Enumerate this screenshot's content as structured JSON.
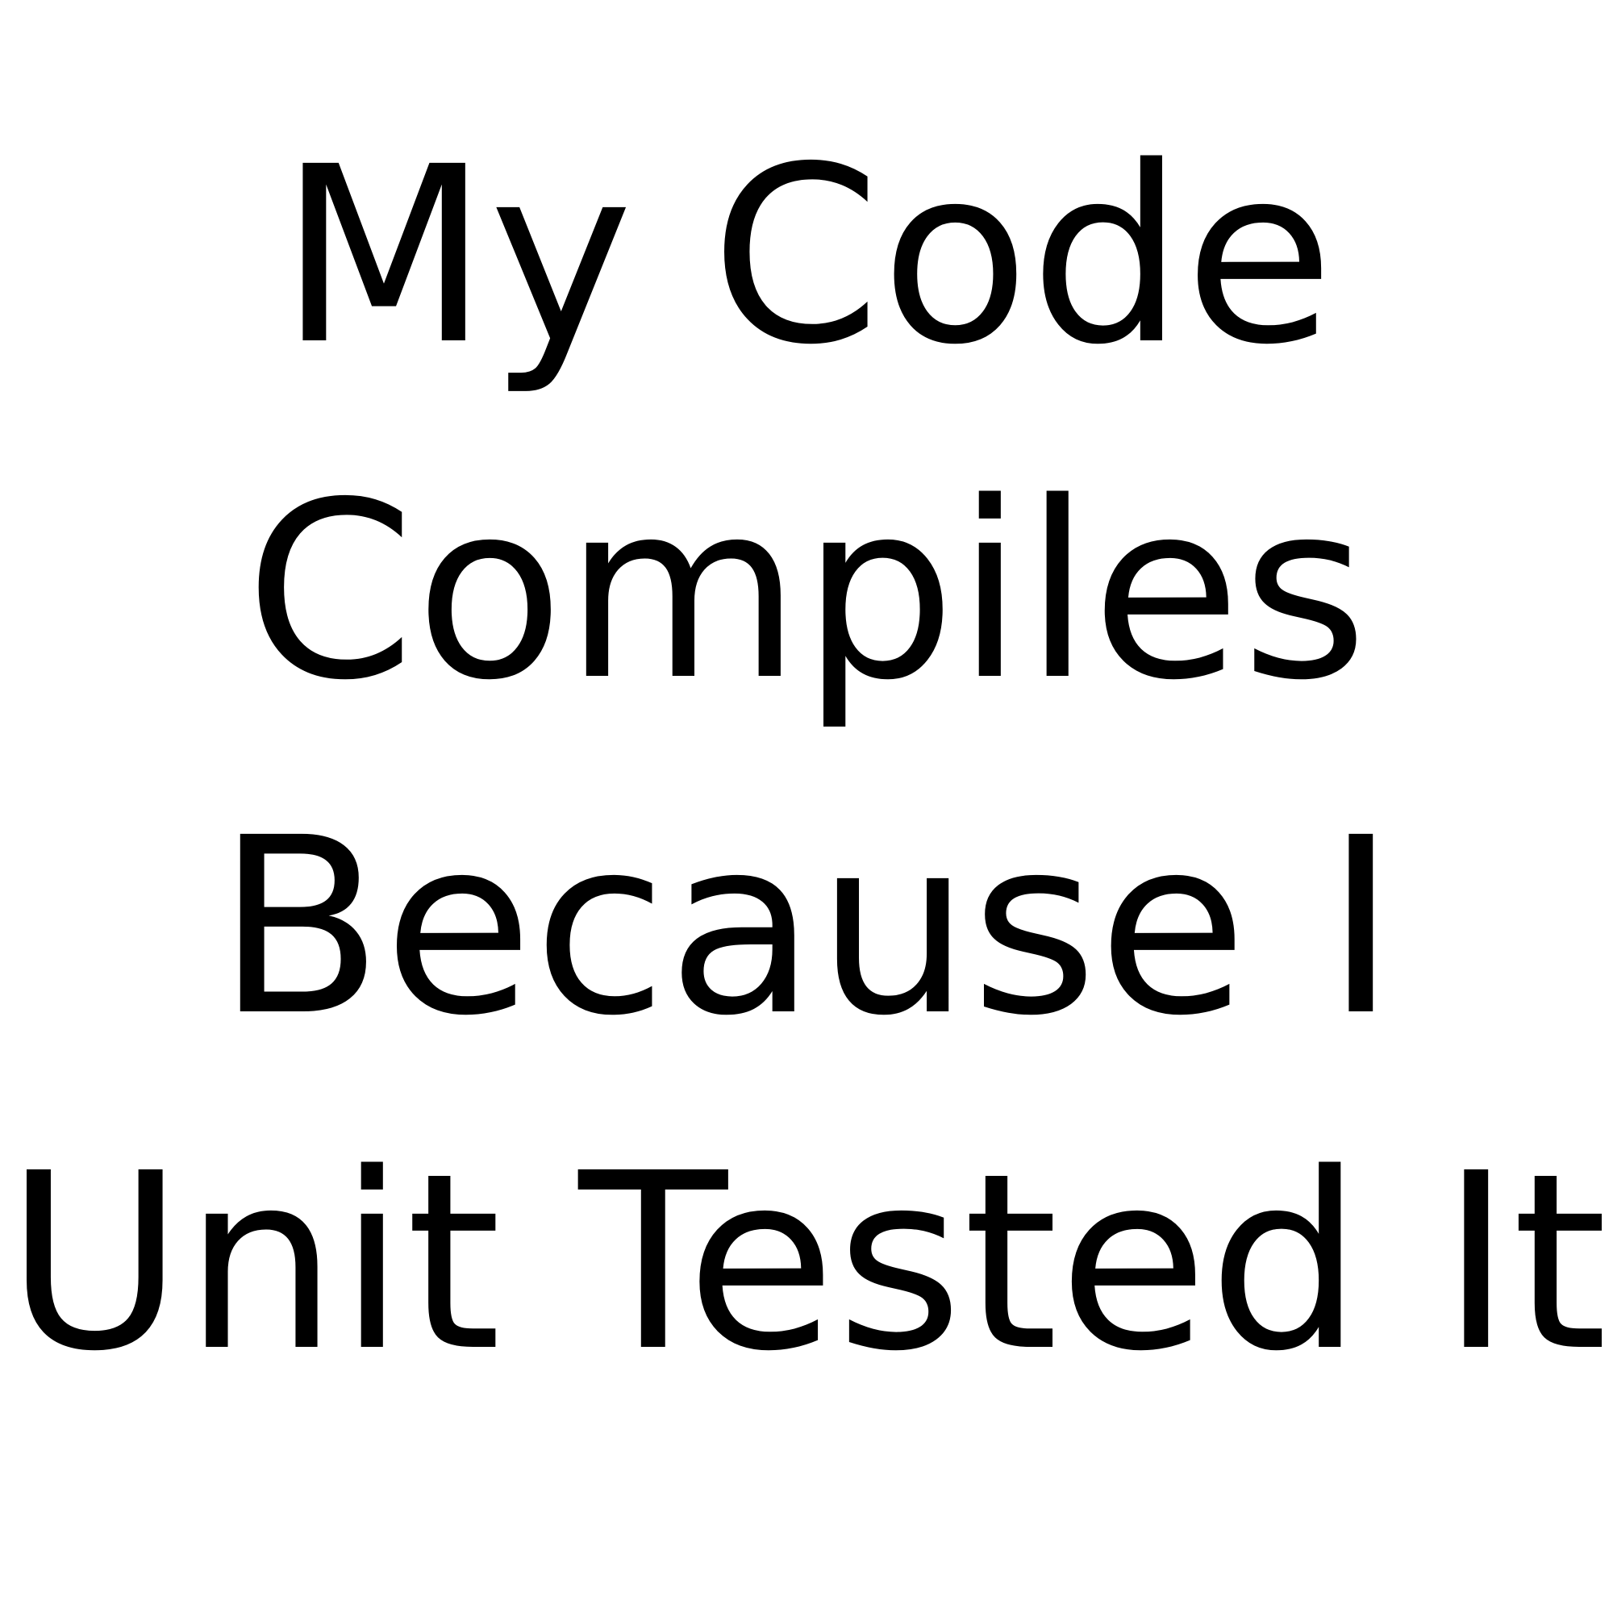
{
  "meme": {
    "lines": [
      "My Code",
      "Compiles",
      "Because I",
      "Unit Tested It"
    ]
  },
  "colors": {
    "background": "#ffffff",
    "text": "#000000"
  }
}
